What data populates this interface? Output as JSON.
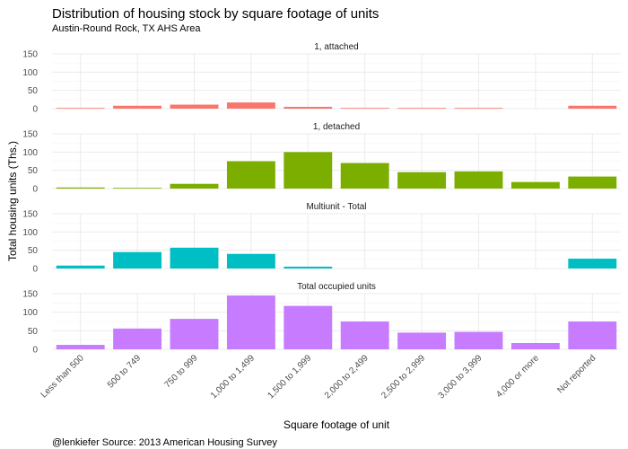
{
  "chart_data": {
    "type": "bar",
    "title": "Distribution of housing stock by square footage of units",
    "subtitle": "Austin-Round Rock, TX AHS Area",
    "caption": "@lenkiefer Source: 2013 American Housing Survey",
    "xlabel": "Square footage of unit",
    "ylabel": "Total housing units (Ths.)",
    "ylim": [
      0,
      150
    ],
    "yticks": [
      "0",
      "50",
      "100",
      "150"
    ],
    "grid": true,
    "categories": [
      "Less than 500",
      "500 to 749",
      "750 to 999",
      "1,000 to 1,499",
      "1,500 to 1,999",
      "2,000 to 2,499",
      "2,500 to 2,999",
      "3,000 to 3,999",
      "4,000 or more",
      "Not reported"
    ],
    "series": [
      {
        "name": "1, attached",
        "color": "#F8766D",
        "values": [
          2,
          8,
          11,
          17,
          5,
          2,
          2,
          2,
          0,
          8
        ]
      },
      {
        "name": "1, detached",
        "color": "#7CAE00",
        "values": [
          3,
          2,
          13,
          75,
          100,
          70,
          45,
          47,
          18,
          33
        ]
      },
      {
        "name": "Multiunit - Total",
        "color": "#00BFC4",
        "values": [
          8,
          45,
          57,
          40,
          5,
          0,
          0,
          0,
          0,
          27
        ]
      },
      {
        "name": "Total occupied units",
        "color": "#C77CFF",
        "values": [
          12,
          56,
          82,
          145,
          117,
          75,
          45,
          47,
          17,
          75
        ]
      }
    ]
  }
}
